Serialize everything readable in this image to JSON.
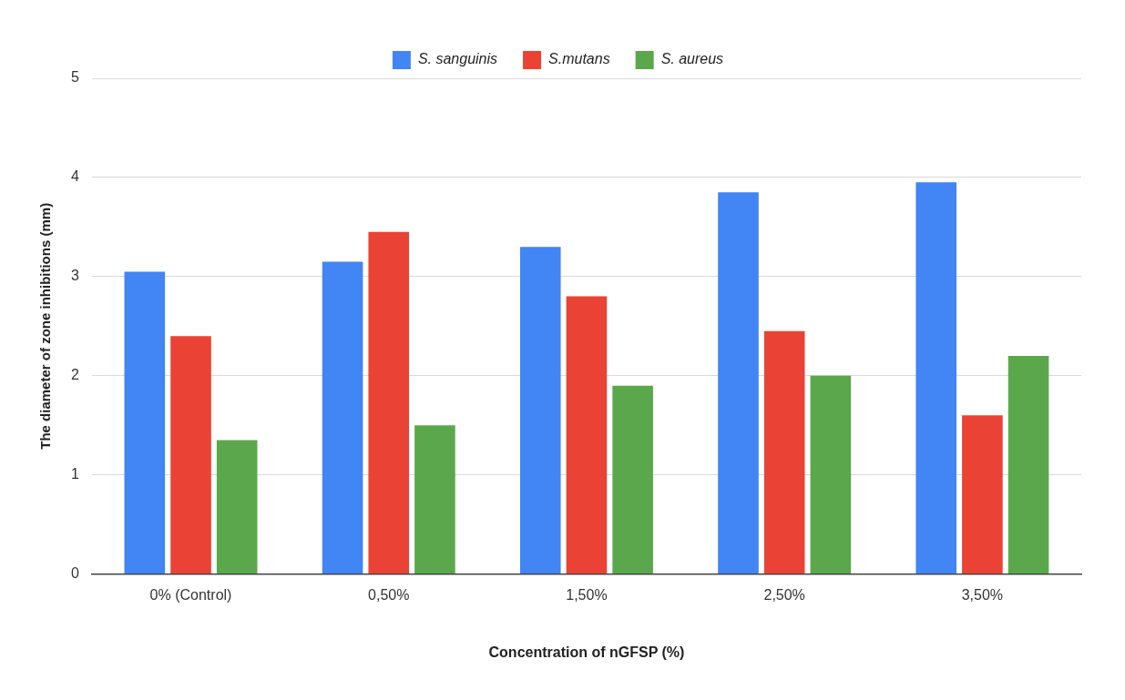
{
  "chart_data": {
    "type": "bar",
    "xlabel": "Concentration of nGFSP (%)",
    "ylabel": "The diameter of zone inhibitions (mm)",
    "categories": [
      "0% (Control)",
      "0,50%",
      "1,50%",
      "2,50%",
      "3,50%"
    ],
    "series": [
      {
        "name": "S. sanguinis",
        "color": "#4285f4",
        "values": [
          3.05,
          3.15,
          3.3,
          3.85,
          3.95
        ]
      },
      {
        "name": "S.mutans",
        "color": "#ea4335",
        "values": [
          2.4,
          3.45,
          2.8,
          2.45,
          1.6
        ]
      },
      {
        "name": "S. aureus",
        "color": "#5aa84b",
        "values": [
          1.35,
          1.5,
          1.9,
          2.0,
          2.2
        ]
      }
    ],
    "ylim": [
      0,
      5
    ],
    "yticks": [
      0,
      1,
      2,
      3,
      4,
      5
    ],
    "grid": "y",
    "legend": "top"
  }
}
